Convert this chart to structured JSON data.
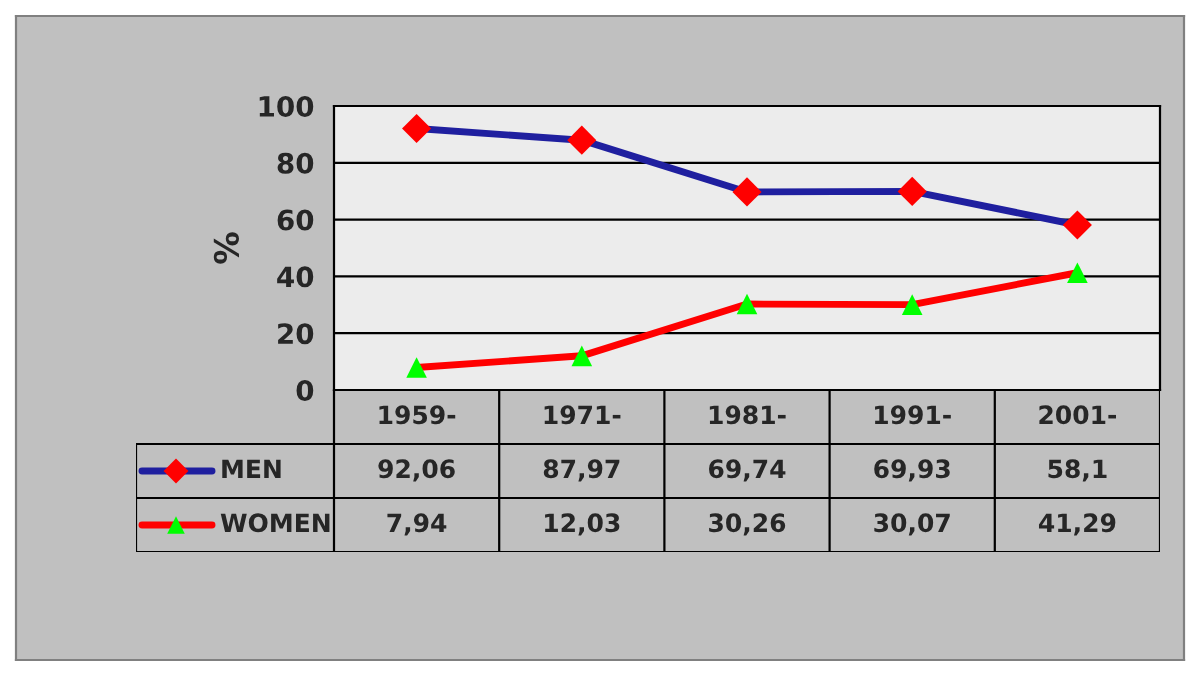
{
  "chart_data": {
    "type": "line",
    "ylabel": "%",
    "categories": [
      "1959-",
      "1971-",
      "1981-",
      "1991-",
      "2001-"
    ],
    "series": [
      {
        "name": "MEN",
        "color": "#1f1f9f",
        "colors": [
          "#ff0000",
          "#ff0000",
          "#ff0000",
          "#ff0000",
          "#ff0000"
        ],
        "marker": "diamond",
        "values": [
          92.06,
          87.97,
          69.74,
          69.93,
          58.1
        ],
        "value_labels": [
          "92,06",
          "87,97",
          "69,74",
          "69,93",
          "58,1"
        ]
      },
      {
        "name": "WOMEN",
        "color": "#ff0000",
        "colors": [
          "#00ff00",
          "#00ff00",
          "#00ff00",
          "#00ff00",
          "#00ff00"
        ],
        "marker": "triangle",
        "values": [
          7.94,
          12.03,
          30.26,
          30.07,
          41.29
        ],
        "value_labels": [
          "7,94",
          "12,03",
          "30,26",
          "30,07",
          "41,29"
        ]
      }
    ],
    "ylim": [
      0,
      100
    ],
    "yticks": [
      0,
      20,
      40,
      60,
      80,
      100
    ],
    "grid": "y",
    "legend": "bottom"
  }
}
